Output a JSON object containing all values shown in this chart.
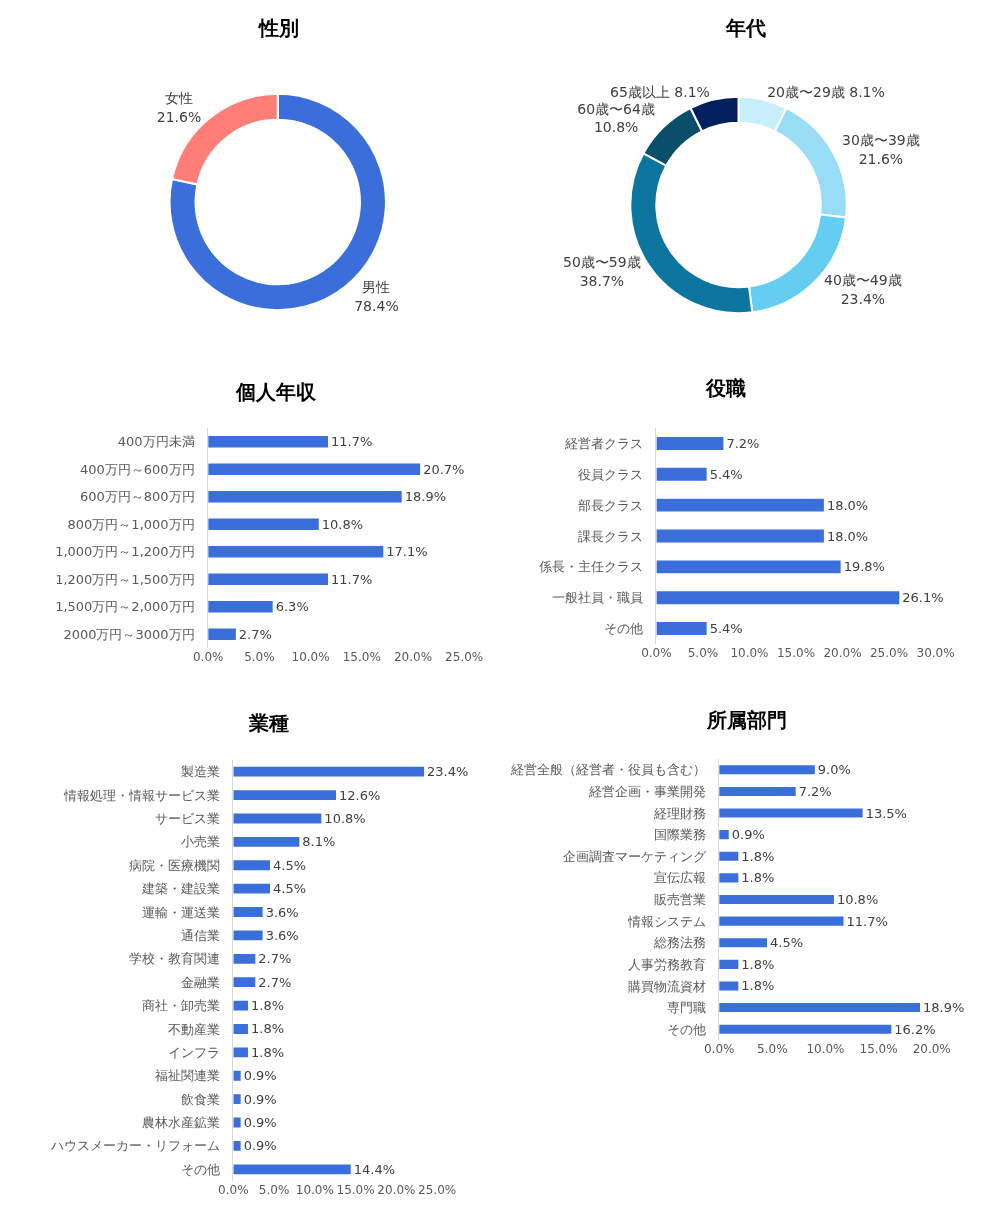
{
  "chart_data": [
    {
      "type": "donut",
      "title": "性別",
      "categories": [
        "男性",
        "女性"
      ],
      "values": [
        78.4,
        21.6
      ],
      "colors": [
        "#3a6fdb",
        "#ff7f78"
      ],
      "value_labels": [
        "78.4%",
        "21.6%"
      ]
    },
    {
      "type": "donut",
      "title": "年代",
      "categories": [
        "20歳〜29歳",
        "30歳〜39歳",
        "40歳〜49歳",
        "50歳〜59歳",
        "60歳〜64歳",
        "65歳以上"
      ],
      "values": [
        8.1,
        21.6,
        23.4,
        38.7,
        10.8,
        8.1
      ],
      "colors": [
        "#c9eefb",
        "#98dcf6",
        "#64cdf2",
        "#0c76a0",
        "#0a4e6a",
        "#03205e"
      ],
      "value_labels": [
        "8.1%",
        "21.6%",
        "23.4%",
        "38.7%",
        "10.8%",
        "8.1%"
      ]
    },
    {
      "type": "bar",
      "orientation": "horizontal",
      "title": "個人年収",
      "categories": [
        "400万円未満",
        "400万円～600万円",
        "600万円～800万円",
        "800万円～1,000万円",
        "1,000万円～1,200万円",
        "1,200万円～1,500万円",
        "1,500万円～2,000万円",
        "2000万円～3000万円"
      ],
      "values": [
        11.7,
        20.7,
        18.9,
        10.8,
        17.1,
        11.7,
        6.3,
        2.7
      ],
      "color": "#3a6fdb",
      "value_labels": [
        "11.7%",
        "20.7%",
        "18.9%",
        "10.8%",
        "17.1%",
        "11.7%",
        "6.3%",
        "2.7%"
      ],
      "xlim": [
        0,
        25
      ],
      "xticks": [
        {
          "value": 0,
          "label": "0.0%"
        },
        {
          "value": 5,
          "label": "5.0%"
        },
        {
          "value": 10,
          "label": "10.0%"
        },
        {
          "value": 15,
          "label": "15.0%"
        },
        {
          "value": 20,
          "label": "20.0%"
        },
        {
          "value": 25,
          "label": "25.0%"
        }
      ]
    },
    {
      "type": "bar",
      "orientation": "horizontal",
      "title": "役職",
      "categories": [
        "経営者クラス",
        "役員クラス",
        "部長クラス",
        "課長クラス",
        "係長・主任クラス",
        "一般社員・職員",
        "その他"
      ],
      "values": [
        7.2,
        5.4,
        18.0,
        18.0,
        19.8,
        26.1,
        5.4
      ],
      "color": "#3a6fdb",
      "value_labels": [
        "7.2%",
        "5.4%",
        "18.0%",
        "18.0%",
        "19.8%",
        "26.1%",
        "5.4%"
      ],
      "xlim": [
        0,
        30
      ],
      "xticks": [
        {
          "value": 0,
          "label": "0.0%"
        },
        {
          "value": 5,
          "label": "5.0%"
        },
        {
          "value": 10,
          "label": "10.0%"
        },
        {
          "value": 15,
          "label": "15.0%"
        },
        {
          "value": 20,
          "label": "20.0%"
        },
        {
          "value": 25,
          "label": "25.0%"
        },
        {
          "value": 30,
          "label": "30.0%"
        }
      ]
    },
    {
      "type": "bar",
      "orientation": "horizontal",
      "title": "業種",
      "categories": [
        "製造業",
        "情報処理・情報サービス業",
        "サービス業",
        "小売業",
        "病院・医療機関",
        "建築・建設業",
        "運輸・運送業",
        "通信業",
        "学校・教育関連",
        "金融業",
        "商社・卸売業",
        "不動産業",
        "インフラ",
        "福祉関連業",
        "飲食業",
        "農林水産鉱業",
        "ハウスメーカー・リフォーム",
        "その他"
      ],
      "values": [
        23.4,
        12.6,
        10.8,
        8.1,
        4.5,
        4.5,
        3.6,
        3.6,
        2.7,
        2.7,
        1.8,
        1.8,
        1.8,
        0.9,
        0.9,
        0.9,
        0.9,
        14.4
      ],
      "color": "#3a6fdb",
      "value_labels": [
        "23.4%",
        "12.6%",
        "10.8%",
        "8.1%",
        "4.5%",
        "4.5%",
        "3.6%",
        "3.6%",
        "2.7%",
        "2.7%",
        "1.8%",
        "1.8%",
        "1.8%",
        "0.9%",
        "0.9%",
        "0.9%",
        "0.9%",
        "14.4%"
      ],
      "xlim": [
        0,
        25
      ],
      "xticks": [
        {
          "value": 0,
          "label": "0.0%"
        },
        {
          "value": 5,
          "label": "5.0%"
        },
        {
          "value": 10,
          "label": "10.0%"
        },
        {
          "value": 15,
          "label": "15.0%"
        },
        {
          "value": 20,
          "label": "20.0%"
        },
        {
          "value": 25,
          "label": "25.0%"
        }
      ]
    },
    {
      "type": "bar",
      "orientation": "horizontal",
      "title": "所属部門",
      "categories": [
        "経営全般（経営者・役員も含む）",
        "経営企画・事業開発",
        "経理財務",
        "国際業務",
        "企画調査マーケティング",
        "宣伝広報",
        "販売営業",
        "情報システム",
        "総務法務",
        "人事労務教育",
        "購買物流資材",
        "専門職",
        "その他"
      ],
      "values": [
        9.0,
        7.2,
        13.5,
        0.9,
        1.8,
        1.8,
        10.8,
        11.7,
        4.5,
        1.8,
        1.8,
        18.9,
        16.2
      ],
      "color": "#3a6fdb",
      "value_labels": [
        "9.0%",
        "7.2%",
        "13.5%",
        "0.9%",
        "1.8%",
        "1.8%",
        "10.8%",
        "11.7%",
        "4.5%",
        "1.8%",
        "1.8%",
        "18.9%",
        "16.2%"
      ],
      "xlim": [
        0,
        20
      ],
      "xticks": [
        {
          "value": 0,
          "label": "0.0%"
        },
        {
          "value": 5,
          "label": "5.0%"
        },
        {
          "value": 10,
          "label": "10.0%"
        },
        {
          "value": 15,
          "label": "15.0%"
        },
        {
          "value": 20,
          "label": "20.0%"
        }
      ]
    }
  ]
}
